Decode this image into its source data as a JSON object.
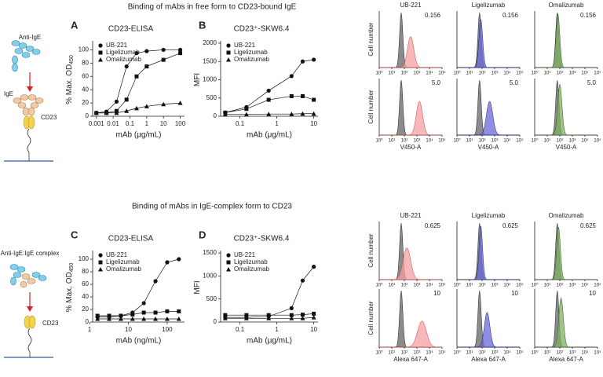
{
  "chart_data": [
    {
      "type": "line",
      "letter": "A",
      "title": "CD23-ELISA",
      "ylabel": "% Max. OD",
      "ylabel_subscript": "450",
      "xlabel": "mAb (μg/mL)",
      "xscale": "log",
      "x": [
        0.001,
        0.004,
        0.016,
        0.063,
        0.25,
        1,
        10,
        100
      ],
      "xlim": [
        0.0006,
        180
      ],
      "xticks": [
        0.001,
        0.01,
        0.1,
        1,
        10,
        100
      ],
      "ylim": [
        0,
        110
      ],
      "yticks": [
        0,
        20,
        40,
        60,
        80,
        100
      ],
      "series": [
        {
          "name": "UB-221",
          "marker": "circle",
          "color": "#111",
          "values": [
            5,
            7,
            22,
            75,
            95,
            98,
            100,
            100
          ]
        },
        {
          "name": "Ligelizumab",
          "marker": "square",
          "color": "#111",
          "values": [
            5,
            5,
            8,
            25,
            60,
            75,
            85,
            95
          ]
        },
        {
          "name": "Omalizumab",
          "marker": "triangle",
          "color": "#111",
          "values": [
            5,
            5,
            5,
            8,
            12,
            15,
            18,
            20
          ]
        }
      ]
    },
    {
      "type": "line",
      "letter": "B",
      "title": "CD23⁺-SKW6.4",
      "ylabel": "MFI",
      "xlabel": "mAb (μg/mL)",
      "xscale": "log",
      "x": [
        0.04,
        0.15,
        0.6,
        2.5,
        5,
        10
      ],
      "xlim": [
        0.03,
        13
      ],
      "xticks": [
        0.1,
        1,
        10
      ],
      "ylim": [
        0,
        2000
      ],
      "yticks": [
        0,
        500,
        1000,
        1500,
        2000
      ],
      "series": [
        {
          "name": "UB-221",
          "marker": "circle",
          "color": "#111",
          "values": [
            100,
            250,
            700,
            1100,
            1500,
            1550
          ]
        },
        {
          "name": "Ligelizumab",
          "marker": "square",
          "color": "#111",
          "values": [
            100,
            200,
            450,
            550,
            550,
            450
          ]
        },
        {
          "name": "Omalizumab",
          "marker": "triangle",
          "color": "#111",
          "values": [
            50,
            50,
            60,
            60,
            70,
            70
          ]
        }
      ]
    },
    {
      "type": "line",
      "letter": "C",
      "title": "CD23-ELISA",
      "ylabel": "% Max. OD",
      "ylabel_subscript": "450",
      "xlabel": "mAb (ng/mL)",
      "xscale": "log",
      "x": [
        1.6,
        3.2,
        6.4,
        12.8,
        25,
        50,
        100,
        200
      ],
      "xlim": [
        1.2,
        280
      ],
      "xticks": [
        1,
        10,
        100
      ],
      "ylim": [
        0,
        110
      ],
      "yticks": [
        0,
        20,
        40,
        60,
        80,
        100
      ],
      "series": [
        {
          "name": "UB-221",
          "marker": "circle",
          "color": "#111",
          "values": [
            8,
            8,
            10,
            15,
            30,
            65,
            95,
            100
          ]
        },
        {
          "name": "Ligelizumab",
          "marker": "square",
          "color": "#111",
          "values": [
            10,
            10,
            10,
            12,
            15,
            15,
            17,
            17
          ]
        },
        {
          "name": "Omalizumab",
          "marker": "triangle",
          "color": "#111",
          "values": [
            5,
            5,
            5,
            5,
            5,
            5,
            5,
            5
          ]
        }
      ]
    },
    {
      "type": "line",
      "letter": "D",
      "title": "CD23⁺-SKW6.4",
      "ylabel": "MFI",
      "xlabel": "mAb (μg/mL)",
      "xscale": "log",
      "x": [
        0.04,
        0.15,
        0.6,
        2.5,
        5,
        10
      ],
      "xlim": [
        0.03,
        13
      ],
      "xticks": [
        0.1,
        1,
        10
      ],
      "ylim": [
        0,
        1500
      ],
      "yticks": [
        0,
        500,
        1000,
        1500
      ],
      "series": [
        {
          "name": "UB-221",
          "marker": "circle",
          "color": "#111",
          "values": [
            100,
            100,
            120,
            300,
            900,
            1200
          ]
        },
        {
          "name": "Ligelizumab",
          "marker": "square",
          "color": "#111",
          "values": [
            150,
            150,
            150,
            150,
            160,
            180
          ]
        },
        {
          "name": "Omalizumab",
          "marker": "triangle",
          "color": "#111",
          "values": [
            80,
            80,
            80,
            80,
            80,
            100
          ]
        }
      ]
    }
  ],
  "figure": {
    "top_title": "Binding of mAbs in free form to CD23-bound IgE",
    "bottom_title": "Binding of mAbs in IgE-complex form to CD23",
    "diagram_top": {
      "anti_ige": "Anti-IgE",
      "ige": "IgE",
      "cd23": "CD23"
    },
    "diagram_bottom": {
      "complex": "Anti-IgE:IgE complex",
      "cd23": "CD23"
    },
    "flow": {
      "columns": [
        "UB-221",
        "Ligelizumab",
        "Omalizumab"
      ],
      "ylabel": "Cell number",
      "xticks": [
        "10⁰",
        "10¹",
        "10²",
        "10³",
        "10⁴",
        "10⁵"
      ],
      "top": {
        "concentrations": [
          "0.156",
          "5.0"
        ],
        "xlabel": "V450-A"
      },
      "bottom": {
        "concentrations": [
          "0.625",
          "10"
        ],
        "xlabel": "Alexa 647-A"
      }
    }
  }
}
